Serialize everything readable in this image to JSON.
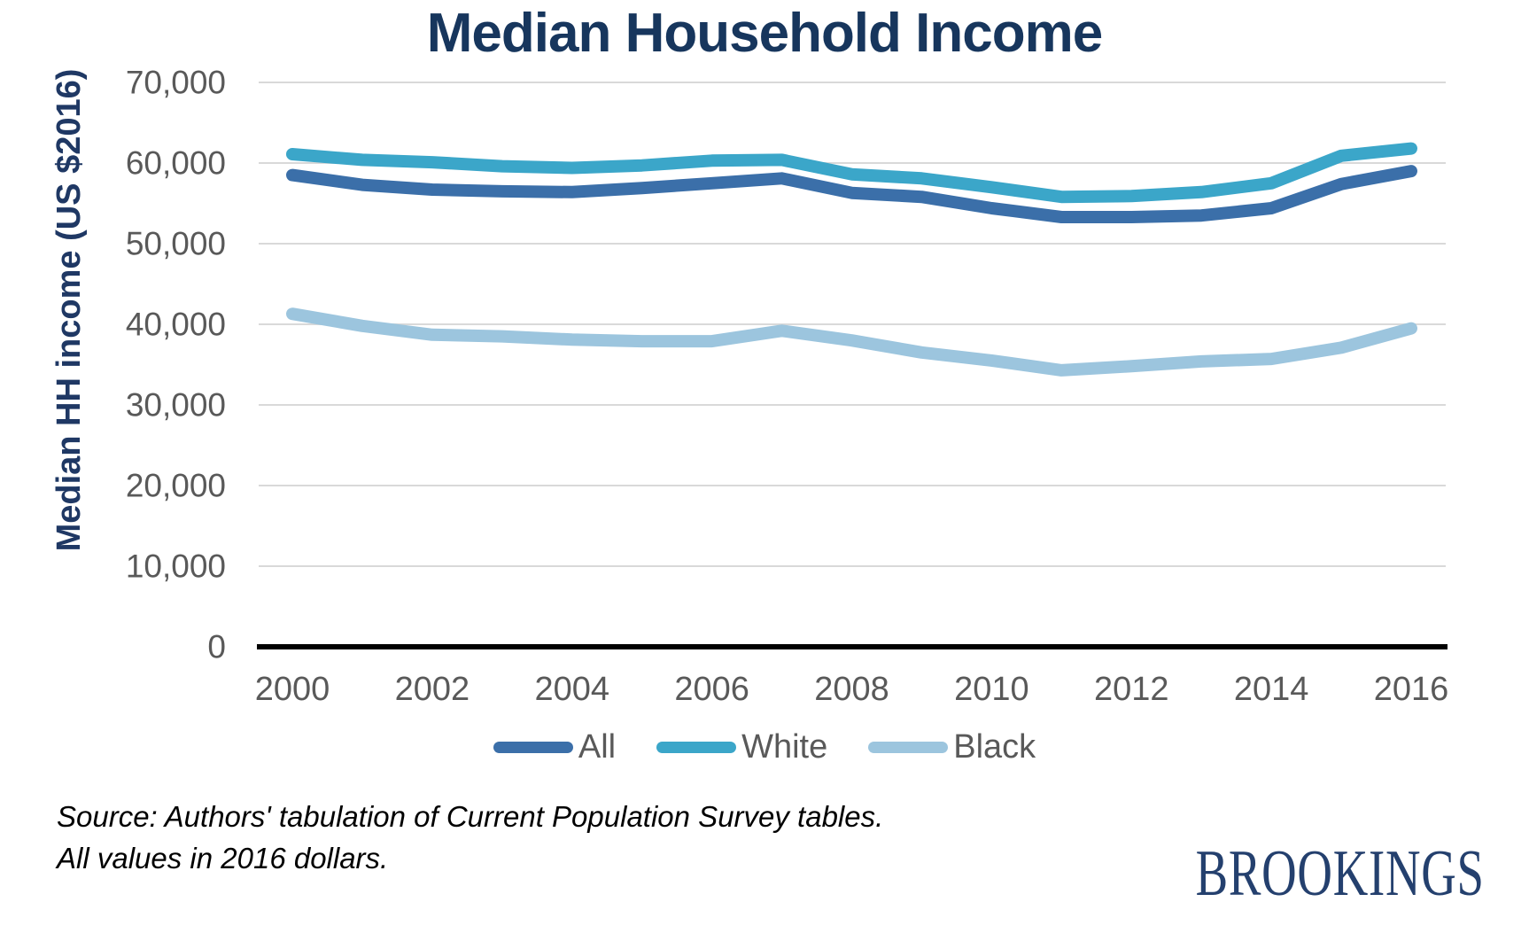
{
  "title": "Median Household Income",
  "y_axis_label": "Median HH income (US $2016)",
  "source_line1": "Source: Authors' tabulation of Current Population Survey tables.",
  "source_line2": "All values in 2016 dollars.",
  "logo_text": "BROOKINGS",
  "colors": {
    "title_navy": "#17365D",
    "axis_label_navy": "#1F3864",
    "tick_gray": "#595959",
    "gridline_gray": "#D9D9D9",
    "axis_black": "#000000",
    "logo_navy": "#24406E"
  },
  "chart_data": {
    "type": "line",
    "title": "Median Household Income",
    "xlabel": "",
    "ylabel": "Median HH income (US $2016)",
    "x": [
      2000,
      2001,
      2002,
      2003,
      2004,
      2005,
      2006,
      2007,
      2008,
      2009,
      2010,
      2011,
      2012,
      2013,
      2014,
      2015,
      2016
    ],
    "series": [
      {
        "name": "All",
        "color": "#3B6FA9",
        "values": [
          58500,
          57300,
          56700,
          56500,
          56400,
          56900,
          57500,
          58100,
          56300,
          55800,
          54400,
          53300,
          53300,
          53500,
          54400,
          57400,
          59000
        ]
      },
      {
        "name": "White",
        "color": "#3BA6C9",
        "values": [
          61100,
          60400,
          60100,
          59600,
          59400,
          59700,
          60300,
          60400,
          58600,
          58100,
          57000,
          55800,
          55900,
          56400,
          57500,
          60900,
          61800
        ]
      },
      {
        "name": "Black",
        "color": "#9CC5DE",
        "values": [
          41300,
          39800,
          38700,
          38500,
          38100,
          37900,
          37900,
          39200,
          38000,
          36500,
          35500,
          34300,
          34800,
          35400,
          35700,
          37100,
          39500
        ]
      }
    ],
    "ylim": [
      0,
      70000
    ],
    "ytick_step": 10000,
    "ytick_labels": [
      "0",
      "10,000",
      "20,000",
      "30,000",
      "40,000",
      "50,000",
      "60,000",
      "70,000"
    ],
    "xtick_labels": [
      "2000",
      "2002",
      "2004",
      "2006",
      "2008",
      "2010",
      "2012",
      "2014",
      "2016"
    ],
    "grid": "horizontal",
    "legend_position": "bottom"
  }
}
